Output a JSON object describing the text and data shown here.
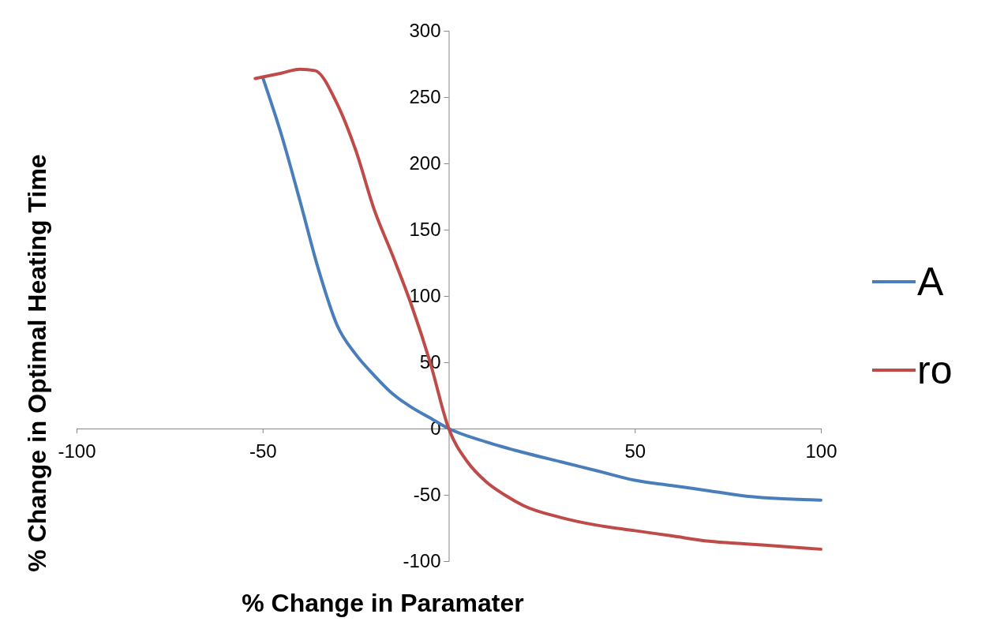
{
  "chart_data": {
    "type": "line",
    "xlabel": "% Change in Paramater",
    "ylabel": "% Change in Optimal Heating Time",
    "xlim": [
      -100,
      100
    ],
    "ylim": [
      -100,
      300
    ],
    "xticks": [
      -100,
      -50,
      {
        "value": 0,
        "label": null
      },
      50,
      100
    ],
    "yticks": [
      -100,
      -50,
      0,
      50,
      100,
      150,
      200,
      250,
      300
    ],
    "grid": false,
    "legend": "right",
    "line_style": "solid",
    "marker": "none",
    "series": [
      {
        "name": "A",
        "color": "#4a7ebb",
        "x": [
          -50,
          -45,
          -40,
          -35,
          -30,
          -25,
          -20,
          -15,
          -10,
          -5,
          0,
          10,
          20,
          30,
          40,
          50,
          60,
          70,
          80,
          90,
          100
        ],
        "values": [
          265,
          222,
          172,
          120,
          78,
          56,
          40,
          26,
          16,
          8,
          0,
          -10,
          -18,
          -25,
          -32,
          -39,
          -43,
          -47,
          -51,
          -53,
          -54
        ]
      },
      {
        "name": "ro",
        "color": "#be4b48",
        "x": [
          -52,
          -45,
          -40,
          -36,
          -30,
          -25,
          -20,
          -15,
          -10,
          -5,
          0,
          5,
          10,
          15,
          20,
          30,
          40,
          50,
          60,
          70,
          80,
          90,
          100
        ],
        "values": [
          264,
          268,
          271,
          270,
          245,
          210,
          165,
          130,
          93,
          50,
          0,
          -25,
          -40,
          -50,
          -58,
          -67,
          -73,
          -77,
          -81,
          -85,
          -87,
          -89,
          -91
        ]
      }
    ]
  }
}
